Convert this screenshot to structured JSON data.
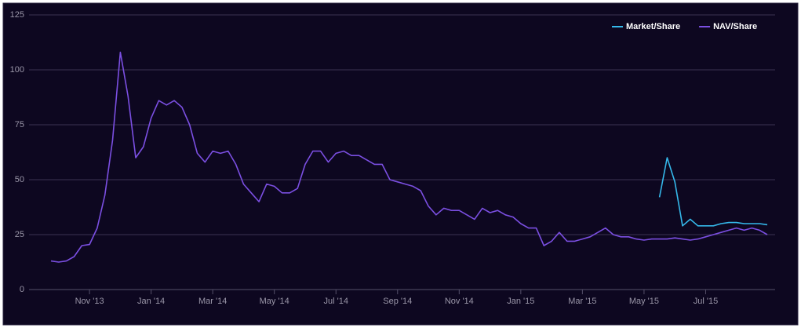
{
  "chart_data": {
    "type": "line",
    "categories": [
      null,
      null,
      null,
      null,
      null,
      "Nov '13",
      null,
      null,
      null,
      null,
      null,
      null,
      null,
      "Jan '14",
      null,
      null,
      null,
      null,
      null,
      null,
      null,
      "Mar '14",
      null,
      null,
      null,
      null,
      null,
      null,
      null,
      "May '14",
      null,
      null,
      null,
      null,
      null,
      null,
      null,
      "Jul '14",
      null,
      null,
      null,
      null,
      null,
      null,
      null,
      "Sep '14",
      null,
      null,
      null,
      null,
      null,
      null,
      null,
      "Nov '14",
      null,
      null,
      null,
      null,
      null,
      null,
      null,
      "Jan '15",
      null,
      null,
      null,
      null,
      null,
      null,
      null,
      "Mar '15",
      null,
      null,
      null,
      null,
      null,
      null,
      null,
      "May '15",
      null,
      null,
      null,
      null,
      null,
      null,
      null,
      "Jul '15",
      null,
      null,
      null,
      null,
      null,
      null,
      null,
      null
    ],
    "series": [
      {
        "name": "Market/Share",
        "color": "#35b8ea",
        "values": [
          null,
          null,
          null,
          null,
          null,
          null,
          null,
          null,
          null,
          null,
          null,
          null,
          null,
          null,
          null,
          null,
          null,
          null,
          null,
          null,
          null,
          null,
          null,
          null,
          null,
          null,
          null,
          null,
          null,
          null,
          null,
          null,
          null,
          null,
          null,
          null,
          null,
          null,
          null,
          null,
          null,
          null,
          null,
          null,
          null,
          null,
          null,
          null,
          null,
          null,
          null,
          null,
          null,
          null,
          null,
          null,
          null,
          null,
          null,
          null,
          null,
          null,
          null,
          null,
          null,
          null,
          null,
          null,
          null,
          null,
          null,
          null,
          null,
          null,
          null,
          null,
          null,
          null,
          null,
          42,
          60,
          49,
          29,
          32,
          29,
          29,
          29,
          30,
          30.5,
          30.5,
          30,
          30,
          30,
          29.5
        ]
      },
      {
        "name": "NAV/Share",
        "color": "#7b4fe2",
        "values": [
          13,
          12.5,
          13,
          15,
          20,
          20.5,
          28,
          43,
          68,
          108,
          88,
          60,
          65,
          78,
          86,
          84,
          86,
          83,
          75,
          62,
          58,
          63,
          62,
          63,
          57,
          48,
          44,
          40,
          48,
          47,
          44,
          44,
          46,
          57,
          63,
          63,
          58,
          62,
          63,
          61,
          61,
          59,
          57,
          57,
          50,
          49,
          48,
          47,
          45,
          38,
          34,
          37,
          36,
          36,
          34,
          32,
          37,
          35,
          36,
          34,
          33,
          30,
          28,
          28,
          20,
          22,
          26,
          22,
          22,
          23,
          24,
          26,
          28,
          25,
          24,
          24,
          23,
          22.5,
          23,
          23,
          23,
          23.5,
          23,
          22.5,
          23,
          24,
          25,
          26,
          27,
          28,
          27,
          28,
          27,
          25
        ]
      }
    ],
    "ylim": [
      0,
      125
    ],
    "yticks": [
      0,
      25,
      50,
      75,
      100,
      125
    ],
    "grid": true,
    "legend": "top-right"
  }
}
